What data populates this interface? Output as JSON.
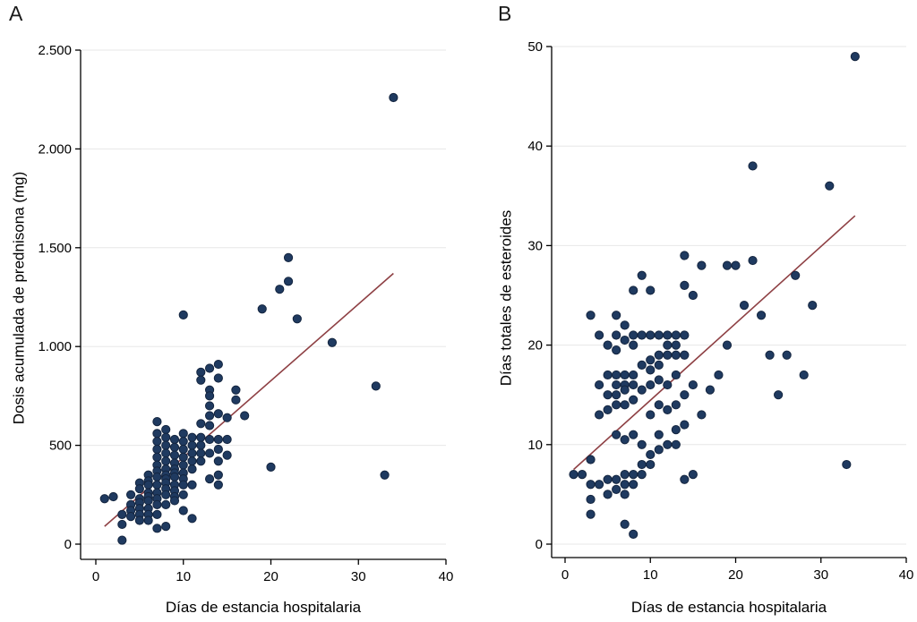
{
  "style": {
    "background": "#ffffff",
    "point_color": "#1f3a60",
    "point_stroke": "#14253f",
    "regression_line_color": "#8e4044",
    "grid_color": "#e7e7e7",
    "axis_color": "#000000",
    "text_color": "#000000"
  },
  "chart_data": [
    {
      "type": "scatter",
      "panel_label": "A",
      "xlabel": "Días de estancia hospitalaria",
      "ylabel": "Dosis acumulada de prednisona (mg)",
      "xlim": [
        0,
        40
      ],
      "ylim": [
        0,
        2500
      ],
      "xticks": [
        0,
        10,
        20,
        30,
        40
      ],
      "xtick_labels": [
        "0",
        "10",
        "20",
        "30",
        "40"
      ],
      "yticks": [
        0,
        500,
        1000,
        1500,
        2000,
        2500
      ],
      "ytick_labels": [
        "0",
        "500",
        "1.000",
        "1.500",
        "2.000",
        "2.500"
      ],
      "grid": "horizontal-y",
      "legend": "none",
      "regression_line": {
        "x": [
          1,
          34
        ],
        "y": [
          90,
          1370
        ]
      },
      "points": [
        [
          1,
          230
        ],
        [
          2,
          240
        ],
        [
          3,
          150
        ],
        [
          3,
          100
        ],
        [
          3,
          20
        ],
        [
          4,
          250
        ],
        [
          4,
          200
        ],
        [
          4,
          170
        ],
        [
          4,
          140
        ],
        [
          5,
          310
        ],
        [
          5,
          280
        ],
        [
          5,
          230
        ],
        [
          5,
          210
        ],
        [
          5,
          180
        ],
        [
          5,
          150
        ],
        [
          5,
          120
        ],
        [
          6,
          350
        ],
        [
          6,
          320
        ],
        [
          6,
          300
        ],
        [
          6,
          260
        ],
        [
          6,
          240
        ],
        [
          6,
          220
        ],
        [
          6,
          180
        ],
        [
          6,
          150
        ],
        [
          6,
          120
        ],
        [
          7,
          620
        ],
        [
          7,
          560
        ],
        [
          7,
          520
        ],
        [
          7,
          480
        ],
        [
          7,
          440
        ],
        [
          7,
          400
        ],
        [
          7,
          370
        ],
        [
          7,
          340
        ],
        [
          7,
          300
        ],
        [
          7,
          260
        ],
        [
          7,
          230
        ],
        [
          7,
          200
        ],
        [
          7,
          150
        ],
        [
          7,
          80
        ],
        [
          8,
          580
        ],
        [
          8,
          540
        ],
        [
          8,
          500
        ],
        [
          8,
          460
        ],
        [
          8,
          420
        ],
        [
          8,
          380
        ],
        [
          8,
          350
        ],
        [
          8,
          330
        ],
        [
          8,
          310
        ],
        [
          8,
          280
        ],
        [
          8,
          250
        ],
        [
          8,
          200
        ],
        [
          8,
          90
        ],
        [
          9,
          530
        ],
        [
          9,
          490
        ],
        [
          9,
          450
        ],
        [
          9,
          410
        ],
        [
          9,
          380
        ],
        [
          9,
          360
        ],
        [
          9,
          340
        ],
        [
          9,
          300
        ],
        [
          9,
          270
        ],
        [
          9,
          240
        ],
        [
          9,
          220
        ],
        [
          10,
          1160
        ],
        [
          10,
          560
        ],
        [
          10,
          520
        ],
        [
          10,
          480
        ],
        [
          10,
          440
        ],
        [
          10,
          400
        ],
        [
          10,
          360
        ],
        [
          10,
          330
        ],
        [
          10,
          300
        ],
        [
          10,
          250
        ],
        [
          10,
          170
        ],
        [
          11,
          540
        ],
        [
          11,
          500
        ],
        [
          11,
          460
        ],
        [
          11,
          420
        ],
        [
          11,
          380
        ],
        [
          11,
          300
        ],
        [
          11,
          130
        ],
        [
          12,
          870
        ],
        [
          12,
          830
        ],
        [
          12,
          610
        ],
        [
          12,
          540
        ],
        [
          12,
          500
        ],
        [
          12,
          460
        ],
        [
          12,
          420
        ],
        [
          13,
          890
        ],
        [
          13,
          780
        ],
        [
          13,
          750
        ],
        [
          13,
          700
        ],
        [
          13,
          650
        ],
        [
          13,
          600
        ],
        [
          13,
          530
        ],
        [
          13,
          460
        ],
        [
          13,
          330
        ],
        [
          14,
          910
        ],
        [
          14,
          840
        ],
        [
          14,
          660
        ],
        [
          14,
          530
        ],
        [
          14,
          480
        ],
        [
          14,
          420
        ],
        [
          14,
          350
        ],
        [
          14,
          300
        ],
        [
          15,
          640
        ],
        [
          15,
          530
        ],
        [
          15,
          450
        ],
        [
          16,
          780
        ],
        [
          16,
          730
        ],
        [
          17,
          650
        ],
        [
          19,
          1190
        ],
        [
          20,
          390
        ],
        [
          21,
          1290
        ],
        [
          22,
          1450
        ],
        [
          22,
          1330
        ],
        [
          23,
          1140
        ],
        [
          27,
          1020
        ],
        [
          32,
          800
        ],
        [
          33,
          350
        ],
        [
          34,
          2260
        ]
      ]
    },
    {
      "type": "scatter",
      "panel_label": "B",
      "xlabel": "Días de estancia hospitalaria",
      "ylabel": "Días totales de esteroides",
      "xlim": [
        0,
        40
      ],
      "ylim": [
        0,
        50
      ],
      "xticks": [
        0,
        10,
        20,
        30,
        40
      ],
      "xtick_labels": [
        "0",
        "10",
        "20",
        "30",
        "40"
      ],
      "yticks": [
        0,
        10,
        20,
        30,
        40,
        50
      ],
      "ytick_labels": [
        "0",
        "10",
        "20",
        "30",
        "40",
        "50"
      ],
      "grid": "horizontal-y",
      "legend": "none",
      "regression_line": {
        "x": [
          1,
          34
        ],
        "y": [
          7.5,
          33
        ]
      },
      "points": [
        [
          1,
          7
        ],
        [
          2,
          7
        ],
        [
          3,
          23
        ],
        [
          3,
          8.5
        ],
        [
          3,
          6
        ],
        [
          3,
          4.5
        ],
        [
          3,
          3
        ],
        [
          4,
          21
        ],
        [
          4,
          16
        ],
        [
          4,
          13
        ],
        [
          4,
          6
        ],
        [
          5,
          20
        ],
        [
          5,
          17
        ],
        [
          5,
          15
        ],
        [
          5,
          13.5
        ],
        [
          5,
          6.5
        ],
        [
          5,
          5
        ],
        [
          6,
          23
        ],
        [
          6,
          21
        ],
        [
          6,
          19.5
        ],
        [
          6,
          17
        ],
        [
          6,
          16
        ],
        [
          6,
          15
        ],
        [
          6,
          14
        ],
        [
          6,
          11
        ],
        [
          6,
          6.5
        ],
        [
          6,
          5.5
        ],
        [
          7,
          22
        ],
        [
          7,
          20.5
        ],
        [
          7,
          17
        ],
        [
          7,
          16
        ],
        [
          7,
          15.5
        ],
        [
          7,
          14
        ],
        [
          7,
          10.5
        ],
        [
          7,
          7
        ],
        [
          7,
          6
        ],
        [
          7,
          5
        ],
        [
          7,
          2
        ],
        [
          8,
          25.5
        ],
        [
          8,
          21
        ],
        [
          8,
          20
        ],
        [
          8,
          17
        ],
        [
          8,
          16
        ],
        [
          8,
          14.5
        ],
        [
          8,
          11
        ],
        [
          8,
          7
        ],
        [
          8,
          6
        ],
        [
          8,
          1
        ],
        [
          9,
          27
        ],
        [
          9,
          21
        ],
        [
          9,
          18
        ],
        [
          9,
          15.5
        ],
        [
          9,
          10
        ],
        [
          9,
          8
        ],
        [
          9,
          7
        ],
        [
          10,
          25.5
        ],
        [
          10,
          21
        ],
        [
          10,
          18.5
        ],
        [
          10,
          17.5
        ],
        [
          10,
          16
        ],
        [
          10,
          13
        ],
        [
          10,
          9
        ],
        [
          10,
          8
        ],
        [
          11,
          21
        ],
        [
          11,
          19
        ],
        [
          11,
          18
        ],
        [
          11,
          16.5
        ],
        [
          11,
          14
        ],
        [
          11,
          11
        ],
        [
          11,
          9.5
        ],
        [
          12,
          21
        ],
        [
          12,
          20
        ],
        [
          12,
          19
        ],
        [
          12,
          16
        ],
        [
          12,
          13.5
        ],
        [
          12,
          10
        ],
        [
          13,
          21
        ],
        [
          13,
          20
        ],
        [
          13,
          19
        ],
        [
          13,
          17
        ],
        [
          13,
          14
        ],
        [
          13,
          11.5
        ],
        [
          13,
          10
        ],
        [
          14,
          29
        ],
        [
          14,
          26
        ],
        [
          14,
          21
        ],
        [
          14,
          19
        ],
        [
          14,
          15
        ],
        [
          14,
          12
        ],
        [
          14,
          6.5
        ],
        [
          15,
          25
        ],
        [
          15,
          16
        ],
        [
          15,
          7
        ],
        [
          16,
          28
        ],
        [
          16,
          13
        ],
        [
          17,
          15.5
        ],
        [
          18,
          17
        ],
        [
          19,
          28
        ],
        [
          19,
          20
        ],
        [
          20,
          28
        ],
        [
          21,
          24
        ],
        [
          22,
          38
        ],
        [
          22,
          28.5
        ],
        [
          23,
          23
        ],
        [
          24,
          19
        ],
        [
          25,
          15
        ],
        [
          26,
          19
        ],
        [
          27,
          27
        ],
        [
          28,
          17
        ],
        [
          29,
          24
        ],
        [
          31,
          36
        ],
        [
          33,
          8
        ],
        [
          34,
          49
        ]
      ]
    }
  ]
}
